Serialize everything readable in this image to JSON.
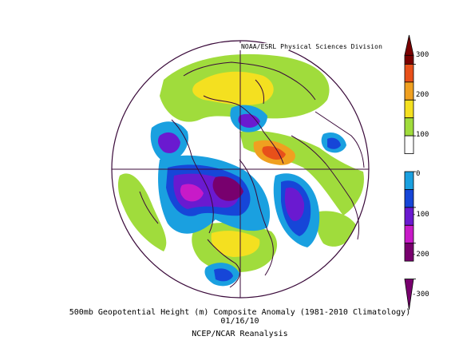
{
  "map": {
    "credit": "NOAA/ESRL Physical Sciences Division",
    "projection": "polar stereographic, northern hemisphere",
    "field": "500mb geopotential height anomaly"
  },
  "colorbar": {
    "labels": [
      "300",
      "200",
      "100",
      "0",
      "-100",
      "-200",
      "-300"
    ],
    "stops": [
      {
        "from": 300,
        "color": "#7a0000"
      },
      {
        "from": 250,
        "color": "#e8501a"
      },
      {
        "from": 200,
        "color": "#f0a020"
      },
      {
        "from": 150,
        "color": "#f4e020"
      },
      {
        "from": 100,
        "color": "#a0dc3c"
      },
      {
        "from": 50,
        "color": "#ffffff"
      },
      {
        "from": -50,
        "color": "#1aa0e0"
      },
      {
        "from": -100,
        "color": "#1646d8"
      },
      {
        "from": -150,
        "color": "#6a1ad0"
      },
      {
        "from": -200,
        "color": "#c81ac8"
      },
      {
        "from": -250,
        "color": "#78006e"
      }
    ]
  },
  "caption": {
    "line1": "500mb Geopotential Height (m) Composite Anomaly (1981-2010 Climatology)",
    "line2": "01/16/10",
    "line3": "NCEP/NCAR Reanalysis"
  }
}
